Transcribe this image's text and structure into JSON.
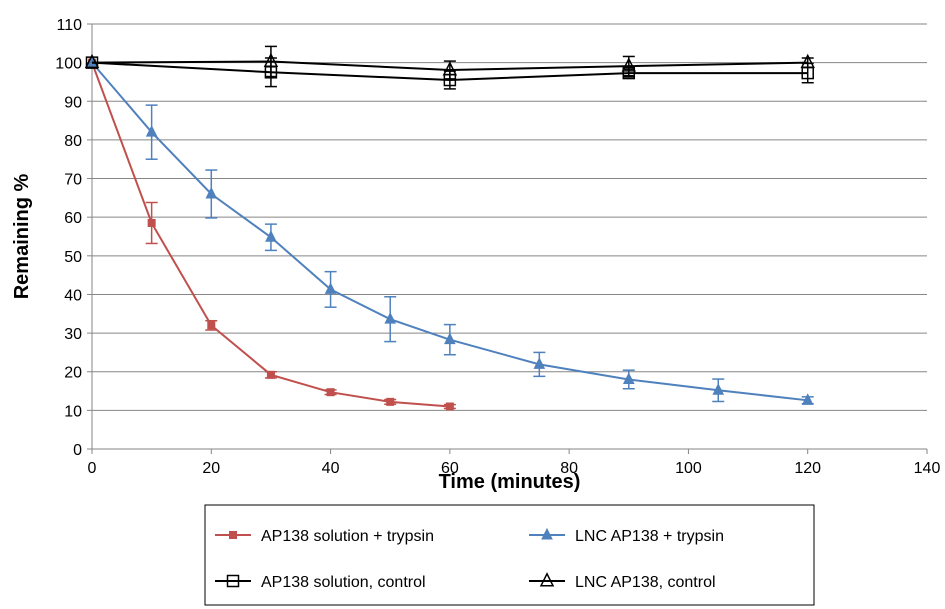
{
  "chart_data": {
    "type": "line",
    "title": "",
    "xlabel": "Time (minutes)",
    "ylabel": "Remaining %",
    "xlim": [
      0,
      140
    ],
    "ylim": [
      0,
      110
    ],
    "x_ticks": [
      0,
      20,
      40,
      60,
      80,
      100,
      120,
      140
    ],
    "y_ticks": [
      0,
      10,
      20,
      30,
      40,
      50,
      60,
      70,
      80,
      90,
      100,
      110
    ],
    "x_tick_labels": [
      "0",
      "20",
      "40",
      "60",
      "80",
      "100",
      "120",
      "140"
    ],
    "y_tick_labels": [
      "0",
      "10",
      "20",
      "30",
      "40",
      "50",
      "60",
      "70",
      "80",
      "90",
      "100",
      "110"
    ],
    "grid": "horizontal",
    "legend_position": "bottom",
    "series": [
      {
        "name": "AP138 solution + trypsin",
        "color": "#c0504d",
        "marker": "square-filled",
        "x": [
          0,
          10,
          20,
          30,
          40,
          50,
          60
        ],
        "y": [
          100,
          58.5,
          32,
          19.2,
          14.7,
          12.2,
          11
        ],
        "err": [
          0,
          5.3,
          1.2,
          0.8,
          0.6,
          0.6,
          0.5
        ]
      },
      {
        "name": "LNC AP138 + trypsin",
        "color": "#4f81bd",
        "marker": "triangle-filled",
        "x": [
          0,
          10,
          20,
          30,
          40,
          50,
          60,
          75,
          90,
          105,
          120
        ],
        "y": [
          100,
          82,
          66,
          54.8,
          41.3,
          33.6,
          28.3,
          21.9,
          18,
          15.2,
          12.6
        ],
        "err": [
          0,
          7,
          6.2,
          3.4,
          4.6,
          5.8,
          3.9,
          3.1,
          2.4,
          2.9,
          0.9
        ]
      },
      {
        "name": "AP138 solution, control",
        "color": "#000000",
        "marker": "square-open",
        "x": [
          0,
          30,
          60,
          90,
          120
        ],
        "y": [
          100,
          97.5,
          95.5,
          97.3,
          97.3
        ],
        "err": [
          0,
          3.7,
          2.3,
          1,
          2.5
        ]
      },
      {
        "name": "LNC AP138, control",
        "color": "#000000",
        "marker": "triangle-open",
        "x": [
          0,
          30,
          60,
          90,
          120
        ],
        "y": [
          100,
          100.3,
          98.1,
          99.1,
          100
        ],
        "err": [
          0,
          3.9,
          2.3,
          2.5,
          1.2
        ]
      }
    ]
  }
}
